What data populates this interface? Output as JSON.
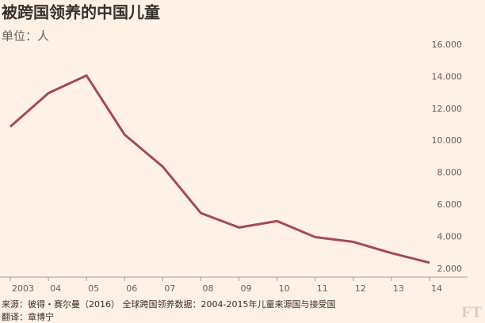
{
  "chart_data": {
    "type": "line",
    "title": "被跨国领养的中国儿童",
    "subtitle": "单位：人",
    "categories": [
      "2003",
      "04",
      "05",
      "06",
      "07",
      "08",
      "09",
      "10",
      "11",
      "12",
      "13",
      "14"
    ],
    "series": [
      {
        "name": "被跨国领养的中国儿童",
        "color": "#a5475e",
        "values": [
          10900,
          13000,
          14100,
          10400,
          8400,
          5500,
          4600,
          5000,
          4000,
          3700,
          3000,
          2400
        ]
      }
    ],
    "ylim": [
      1500,
      16000
    ],
    "yticks": [
      {
        "value": 2000,
        "label": "2.000"
      },
      {
        "value": 4000,
        "label": "4.000"
      },
      {
        "value": 6000,
        "label": "6.000"
      },
      {
        "value": 8000,
        "label": "8.000"
      },
      {
        "value": 10000,
        "label": "10.000"
      },
      {
        "value": 12000,
        "label": "12.000"
      },
      {
        "value": 14000,
        "label": "14.000"
      },
      {
        "value": 16000,
        "label": "16.000"
      }
    ],
    "grid": false,
    "source": "来源：彼得・赛尔曼（2016） 全球跨国领养数据：2004-2015年儿童来源国与接受国",
    "translator": "翻译：章博宁",
    "logo": "FT"
  }
}
